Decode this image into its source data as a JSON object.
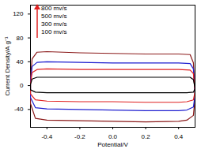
{
  "chart_data": {
    "type": "line",
    "x_label": "Potential/V",
    "y_label": "Current Density/A g⁻¹",
    "xlim": [
      -0.5,
      0.5
    ],
    "ylim": [
      -70,
      135
    ],
    "xticks": [
      {
        "value": -0.4,
        "label": "-0.4"
      },
      {
        "value": -0.2,
        "label": "-0.2"
      },
      {
        "value": 0,
        "label": "0.0"
      },
      {
        "value": 0.2,
        "label": "0.2"
      },
      {
        "value": 0.4,
        "label": "0.4"
      }
    ],
    "yticks": [
      {
        "value": -40,
        "label": "-40"
      },
      0,
      40,
      80,
      120
    ],
    "legend": "top-left",
    "series": [
      {
        "name": "800 mv/s",
        "color": "#8b1a1a",
        "x": [
          -0.5,
          -0.49,
          -0.46,
          -0.4,
          -0.2,
          0,
          0.2,
          0.4,
          0.47,
          0.49,
          0.5,
          0.49,
          0.45,
          0.4,
          0.2,
          0,
          -0.2,
          -0.4,
          -0.47,
          -0.5,
          -0.5
        ],
        "values": [
          10,
          45,
          56,
          57,
          55,
          54,
          53,
          53,
          52,
          38,
          -20,
          -50,
          -58,
          -60,
          -61,
          -60,
          -59,
          -58,
          -55,
          -30,
          10
        ]
      },
      {
        "name": "500 mv/s",
        "color": "#1f1fd0",
        "x": [
          -0.5,
          -0.49,
          -0.46,
          -0.4,
          -0.2,
          0,
          0.2,
          0.4,
          0.47,
          0.49,
          0.5,
          0.49,
          0.45,
          0.4,
          0.2,
          0,
          -0.2,
          -0.4,
          -0.47,
          -0.5,
          -0.5
        ],
        "values": [
          5,
          32,
          39,
          40,
          39,
          38,
          38,
          38,
          37,
          28,
          -15,
          -36,
          -41,
          -42,
          -42,
          -41,
          -40,
          -39,
          -37,
          -20,
          5
        ]
      },
      {
        "name": "300 mv/s",
        "color": "#e02020",
        "x": [
          -0.5,
          -0.49,
          -0.46,
          -0.4,
          -0.2,
          0,
          0.2,
          0.4,
          0.47,
          0.49,
          0.5,
          0.49,
          0.45,
          0.4,
          0.2,
          0,
          -0.2,
          -0.4,
          -0.47,
          -0.5,
          -0.5
        ],
        "values": [
          3,
          22,
          27,
          28,
          27,
          27,
          27,
          27,
          26,
          20,
          -10,
          -24,
          -27,
          -28,
          -28,
          -27,
          -27,
          -26,
          -24,
          -14,
          3
        ]
      },
      {
        "name": "100 mv/s",
        "color": "#000000",
        "x": [
          -0.5,
          -0.49,
          -0.46,
          -0.4,
          -0.2,
          0,
          0.2,
          0.4,
          0.47,
          0.49,
          0.5,
          0.49,
          0.45,
          0.4,
          0.2,
          0,
          -0.2,
          -0.4,
          -0.47,
          -0.5,
          -0.5
        ],
        "values": [
          2,
          11,
          14,
          14,
          14,
          14,
          14,
          14,
          14,
          10,
          -5,
          -11,
          -12,
          -12,
          -12,
          -12,
          -12,
          -12,
          -11,
          -7,
          2
        ]
      }
    ]
  }
}
